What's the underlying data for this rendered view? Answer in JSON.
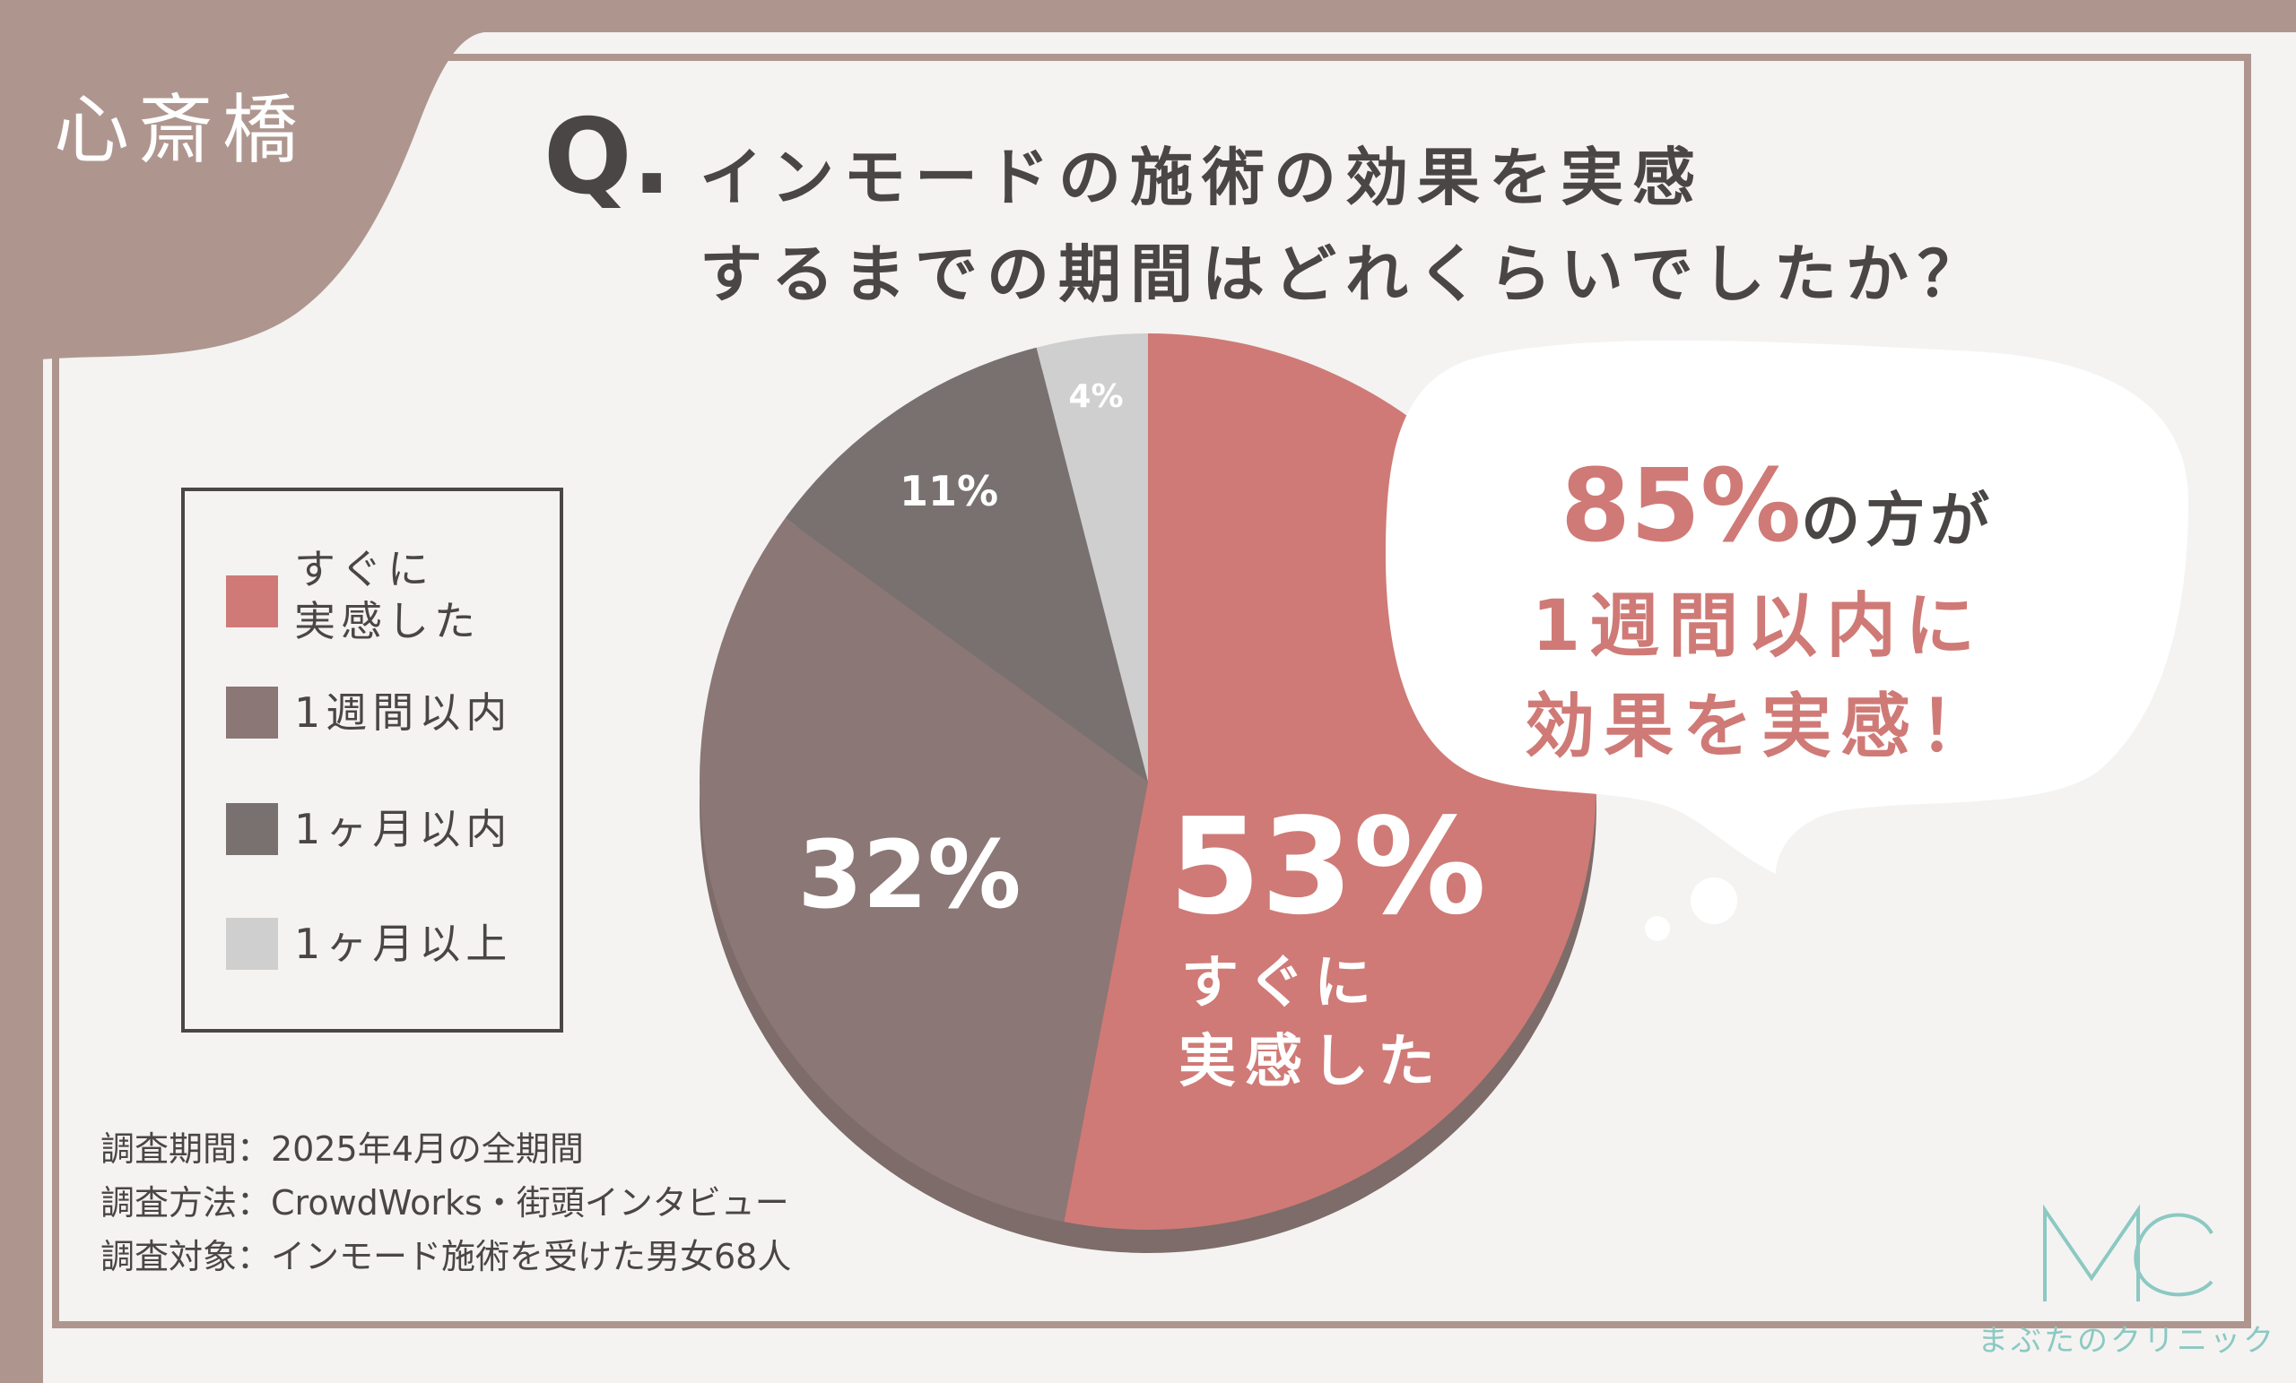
{
  "location": "心斎橋",
  "question": {
    "mark": "Q.",
    "line1": "インモードの施術の効果を実感",
    "line2": "するまでの期間はどれくらいでしたか？"
  },
  "colors": {
    "frame": "#ae968f",
    "immediate": "#cf7a76",
    "within_week": "#8b7775",
    "within_month": "#787170",
    "over_month": "#cfcfcf",
    "text": "#4a4645",
    "brand": "#8bc9c2"
  },
  "chart_data": {
    "type": "pie",
    "slices": [
      {
        "label": "すぐに\n実感した",
        "value": 53,
        "display": "53%",
        "sub_label_line1": "すぐに",
        "sub_label_line2": "実感した",
        "color": "#cf7a76"
      },
      {
        "label": "1週間以内",
        "value": 32,
        "display": "32%",
        "color": "#8b7775"
      },
      {
        "label": "1ヶ月以内",
        "value": 11,
        "display": "11%",
        "color": "#787170"
      },
      {
        "label": "1ヶ月以上",
        "value": 4,
        "display": "4%",
        "color": "#cfcfcf"
      }
    ],
    "legend": "left"
  },
  "callout": {
    "percent": "85%",
    "suffix": "の方が",
    "line2": "1週間以内に",
    "line3": "効果を実感！"
  },
  "survey": {
    "period": "調査期間：2025年4月の全期間",
    "method": "調査方法：CrowdWorks・街頭インタビュー",
    "target": "調査対象：インモード施術を受けた男女68人"
  },
  "brand": {
    "name": "まぶたのクリニック",
    "logo_icon": "mc-monogram-icon"
  }
}
